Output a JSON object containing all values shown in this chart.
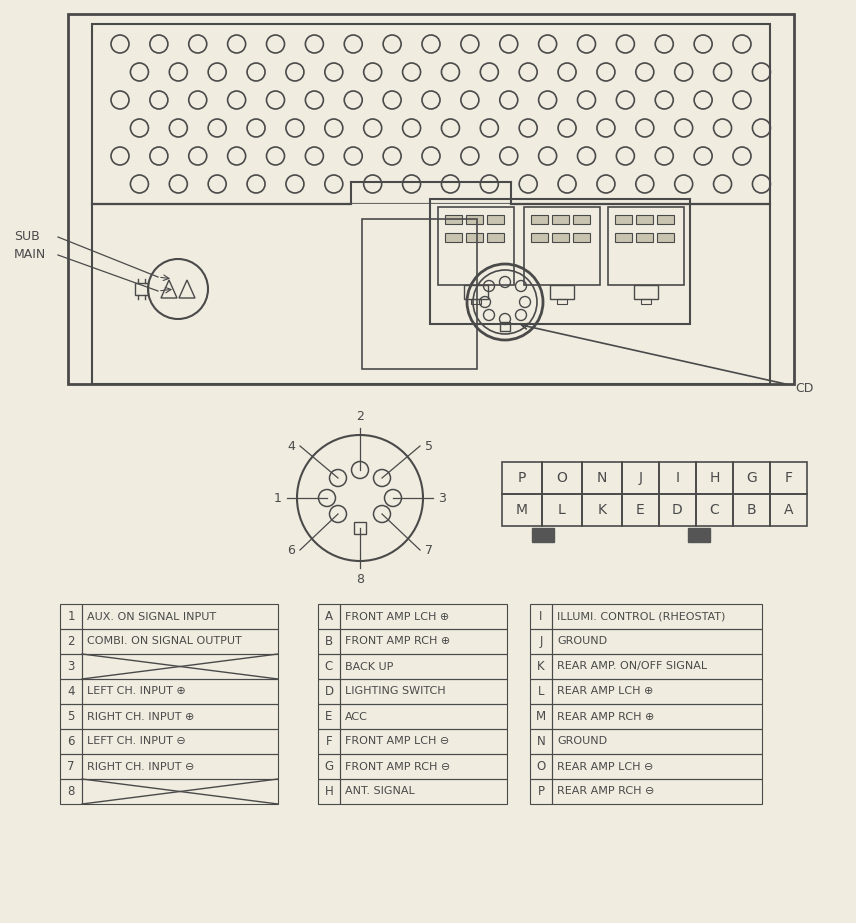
{
  "bg_color": "#f0ece0",
  "line_color": "#4a4a4a",
  "table1": {
    "rows": [
      [
        "1",
        "AUX. ON SIGNAL INPUT"
      ],
      [
        "2",
        "COMBI. ON SIGNAL OUTPUT"
      ],
      [
        "3",
        ""
      ],
      [
        "4",
        "LEFT CH. INPUT ⊕"
      ],
      [
        "5",
        "RIGHT CH. INPUT ⊕"
      ],
      [
        "6",
        "LEFT CH. INPUT ⊖"
      ],
      [
        "7",
        "RIGHT CH. INPUT ⊖"
      ],
      [
        "8",
        ""
      ]
    ]
  },
  "table2": {
    "rows": [
      [
        "A",
        "FRONT AMP LCH ⊕"
      ],
      [
        "B",
        "FRONT AMP RCH ⊕"
      ],
      [
        "C",
        "BACK UP"
      ],
      [
        "D",
        "LIGHTING SWITCH"
      ],
      [
        "E",
        "ACC"
      ],
      [
        "F",
        "FRONT AMP LCH ⊖"
      ],
      [
        "G",
        "FRONT AMP RCH ⊖"
      ],
      [
        "H",
        "ANT. SIGNAL"
      ]
    ]
  },
  "table3": {
    "rows": [
      [
        "I",
        "ILLUMI. CONTROL (RHEOSTAT)"
      ],
      [
        "J",
        "GROUND"
      ],
      [
        "K",
        "REAR AMP. ON/OFF SIGNAL"
      ],
      [
        "L",
        "REAR AMP LCH ⊕"
      ],
      [
        "M",
        "REAR AMP RCH ⊕"
      ],
      [
        "N",
        "GROUND"
      ],
      [
        "O",
        "REAR AMP LCH ⊖"
      ],
      [
        "P",
        "REAR AMP RCH ⊖"
      ]
    ]
  },
  "connector_small_top": [
    "P",
    "O",
    "N"
  ],
  "connector_small_bot": [
    "M",
    "L",
    "K"
  ],
  "connector_large_top": [
    "J",
    "I",
    "H",
    "G",
    "F"
  ],
  "connector_large_bot": [
    "E",
    "D",
    "C",
    "B",
    "A"
  ]
}
